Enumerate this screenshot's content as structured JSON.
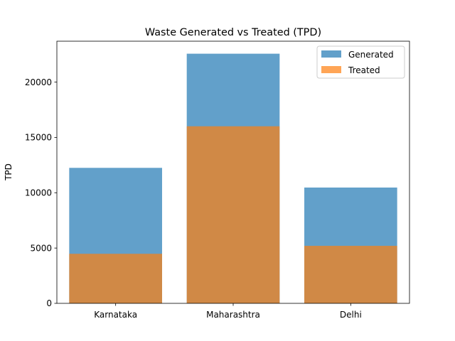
{
  "chart_data": {
    "type": "bar",
    "title": "Waste Generated vs Treated (TPD)",
    "xlabel": "",
    "ylabel": "TPD",
    "categories": [
      "Karnataka",
      "Maharashtra",
      "Delhi"
    ],
    "series": [
      {
        "name": "Generated",
        "values": [
          12250,
          22570,
          10470
        ],
        "color": "#1f77b4",
        "opacity": 0.7
      },
      {
        "name": "Treated",
        "values": [
          4480,
          16010,
          5200
        ],
        "color": "#ff7f0e",
        "opacity": 0.7
      }
    ],
    "ylim": [
      0,
      23700
    ],
    "yticks": [
      0,
      5000,
      10000,
      15000,
      20000
    ],
    "grid": false,
    "legend": "top-right",
    "overlaid": true
  }
}
